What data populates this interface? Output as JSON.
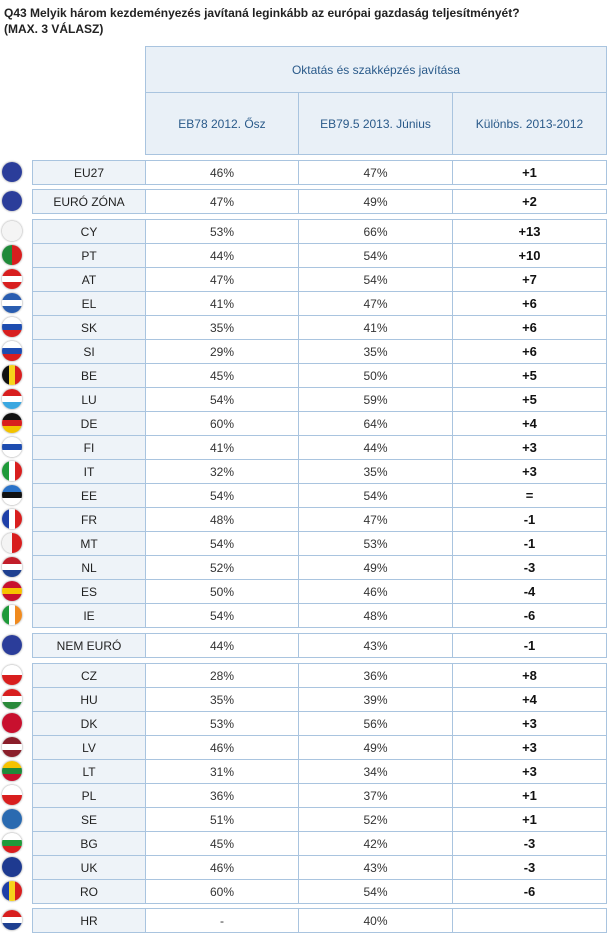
{
  "title": "Q43 Melyik három kezdeményezés javítaná leginkább az európai gazdaság teljesítményét?",
  "subtitle": "(MAX. 3 VÁLASZ)",
  "table": {
    "group_header": "Oktatás és szakképzés javítása",
    "columns": [
      "EB78 2012. Ősz",
      "EB79.5 2013. Június",
      "Különbs. 2013-2012"
    ],
    "groups": [
      {
        "rows": [
          [
            "EU27",
            "46%",
            "47%",
            "+1"
          ]
        ]
      },
      {
        "rows": [
          [
            "EURÓ ZÓNA",
            "47%",
            "49%",
            "+2"
          ]
        ]
      },
      {
        "rows": [
          [
            "CY",
            "53%",
            "66%",
            "+13"
          ],
          [
            "PT",
            "44%",
            "54%",
            "+10"
          ],
          [
            "AT",
            "47%",
            "54%",
            "+7"
          ],
          [
            "EL",
            "41%",
            "47%",
            "+6"
          ],
          [
            "SK",
            "35%",
            "41%",
            "+6"
          ],
          [
            "SI",
            "29%",
            "35%",
            "+6"
          ],
          [
            "BE",
            "45%",
            "50%",
            "+5"
          ],
          [
            "LU",
            "54%",
            "59%",
            "+5"
          ],
          [
            "DE",
            "60%",
            "64%",
            "+4"
          ],
          [
            "FI",
            "41%",
            "44%",
            "+3"
          ],
          [
            "IT",
            "32%",
            "35%",
            "+3"
          ],
          [
            "EE",
            "54%",
            "54%",
            "="
          ],
          [
            "FR",
            "48%",
            "47%",
            "-1"
          ],
          [
            "MT",
            "54%",
            "53%",
            "-1"
          ],
          [
            "NL",
            "52%",
            "49%",
            "-3"
          ],
          [
            "ES",
            "50%",
            "46%",
            "-4"
          ],
          [
            "IE",
            "54%",
            "48%",
            "-6"
          ]
        ]
      },
      {
        "rows": [
          [
            "NEM EURÓ",
            "44%",
            "43%",
            "-1"
          ]
        ]
      },
      {
        "rows": [
          [
            "CZ",
            "28%",
            "36%",
            "+8"
          ],
          [
            "HU",
            "35%",
            "39%",
            "+4"
          ],
          [
            "DK",
            "53%",
            "56%",
            "+3"
          ],
          [
            "LV",
            "46%",
            "49%",
            "+3"
          ],
          [
            "LT",
            "31%",
            "34%",
            "+3"
          ],
          [
            "PL",
            "36%",
            "37%",
            "+1"
          ],
          [
            "SE",
            "51%",
            "52%",
            "+1"
          ],
          [
            "BG",
            "45%",
            "42%",
            "-3"
          ],
          [
            "UK",
            "46%",
            "43%",
            "-3"
          ],
          [
            "RO",
            "60%",
            "54%",
            "-6"
          ]
        ]
      },
      {
        "rows": [
          [
            "HR",
            "-",
            "40%",
            ""
          ]
        ]
      }
    ]
  }
}
